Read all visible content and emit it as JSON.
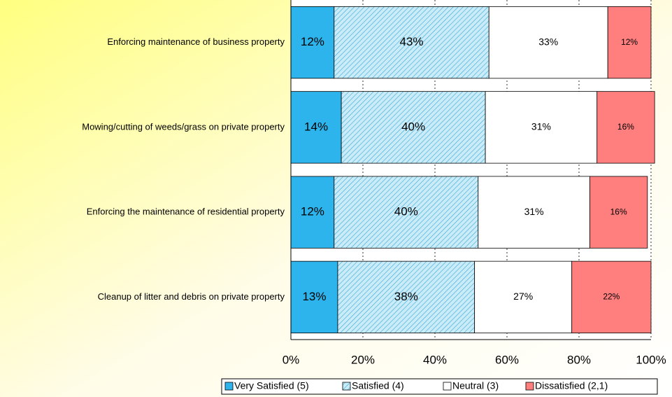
{
  "chart_data": {
    "type": "stacked_bar_horizontal",
    "categories": [
      "Enforcing maintenance of business property",
      "Mowing/cutting of weeds/grass on private property",
      "Enforcing the maintenance of residential property",
      "Cleanup of litter and debris on private property"
    ],
    "series": [
      {
        "name": "Very Satisfied (5)",
        "color": "#2db4ec",
        "values": [
          12,
          14,
          12,
          13
        ],
        "value_labels": [
          "12%",
          "14%",
          "12%",
          "13%"
        ]
      },
      {
        "name": "Satisfied (4)",
        "color": "#c9ecf8",
        "values": [
          43,
          40,
          40,
          38
        ],
        "value_labels": [
          "43%",
          "40%",
          "40%",
          "38%"
        ]
      },
      {
        "name": "Neutral (3)",
        "color": "#ffffff",
        "values": [
          33,
          31,
          31,
          27
        ],
        "value_labels": [
          "33%",
          "31%",
          "31%",
          "27%"
        ]
      },
      {
        "name": "Dissatisfied (2,1)",
        "color": "#ff7f7f",
        "values": [
          12,
          16,
          16,
          22
        ],
        "value_labels": [
          "12%",
          "16%",
          "16%",
          "22%"
        ]
      }
    ],
    "xlim": [
      0,
      100
    ],
    "xticks": [
      {
        "value": 0,
        "label": "0%"
      },
      {
        "value": 20,
        "label": "20%"
      },
      {
        "value": 40,
        "label": "40%"
      },
      {
        "value": 60,
        "label": "60%"
      },
      {
        "value": 80,
        "label": "80%"
      },
      {
        "value": 100,
        "label": "100%"
      }
    ],
    "grid": true,
    "legend": "bottom"
  }
}
